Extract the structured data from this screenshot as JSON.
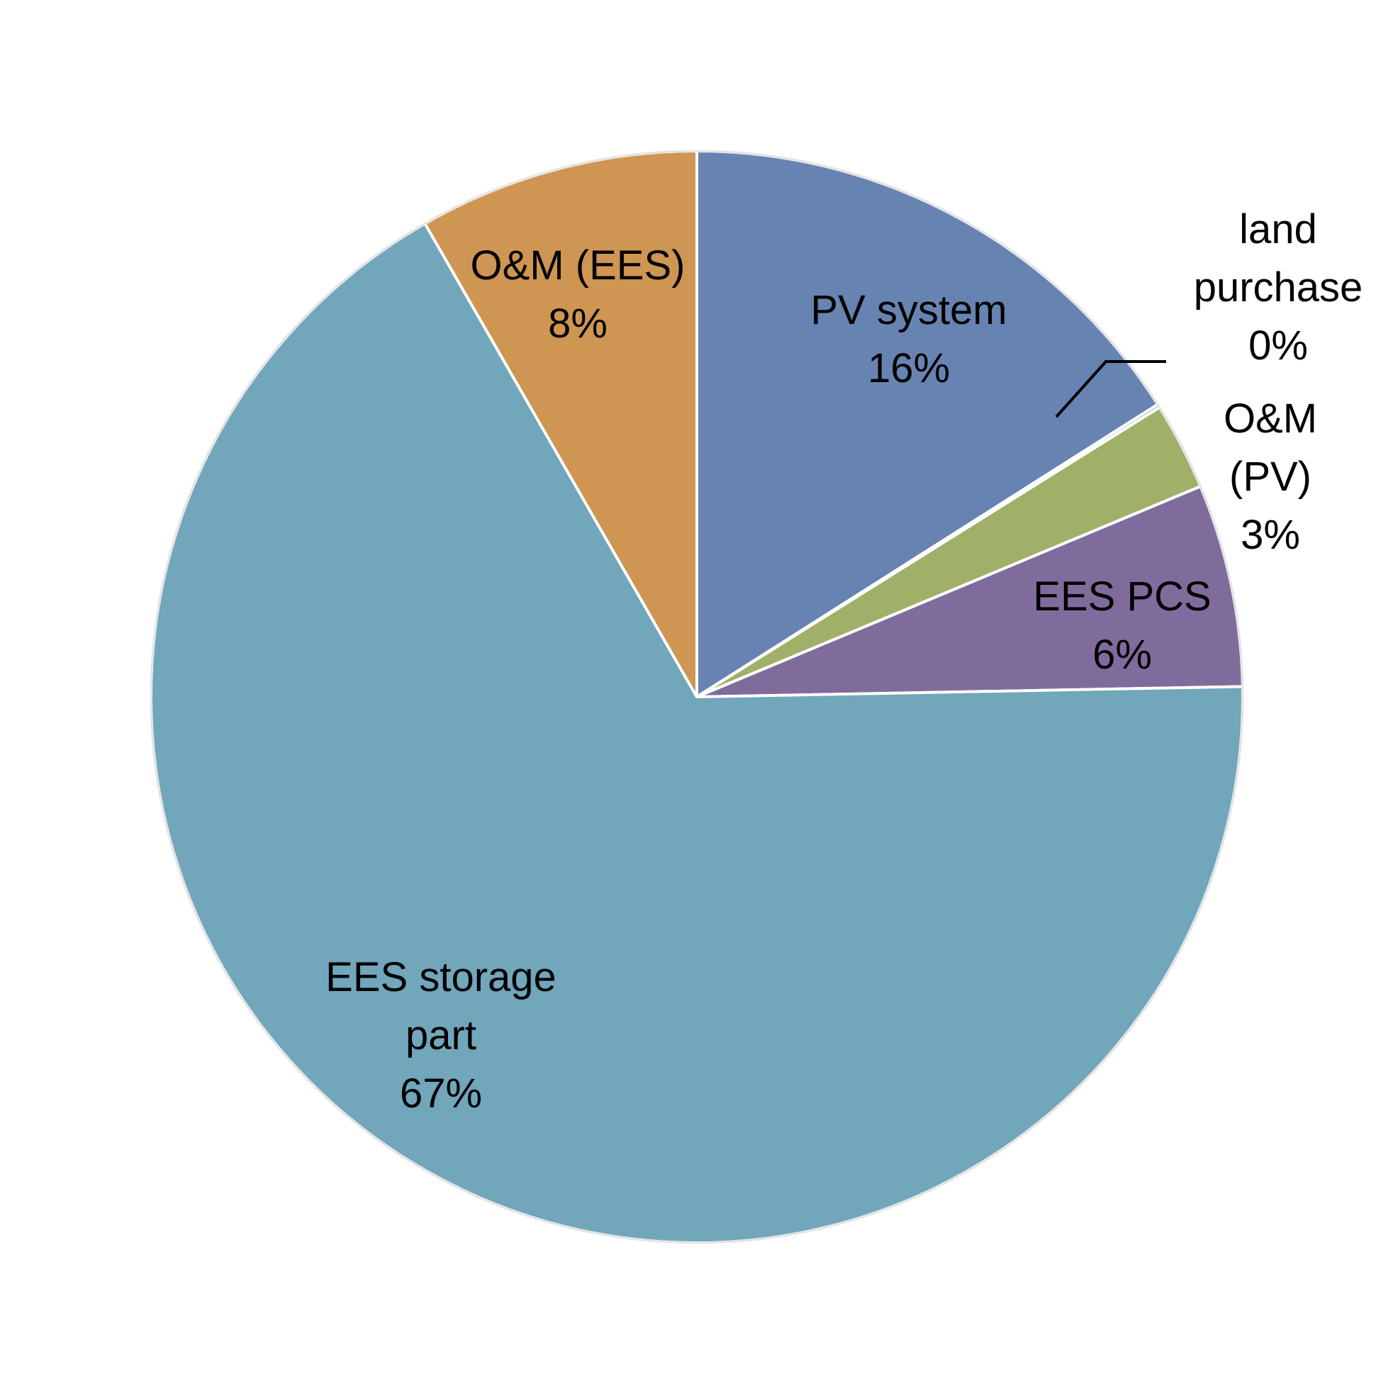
{
  "chart_data": {
    "type": "pie",
    "title": "",
    "start_angle_deg": 0,
    "direction": "clockwise",
    "slices": [
      {
        "name": "PV system",
        "value": 16,
        "label_lines": [
          "PV system",
          "16%"
        ],
        "color": "#6783B1"
      },
      {
        "name": "land purchase",
        "value": 0.1,
        "label_lines": [
          "land",
          "purchase",
          "0%"
        ],
        "color": "#6783B1"
      },
      {
        "name": "O&M (PV)",
        "value": 2.6,
        "label_lines": [
          "O&M",
          "(PV)",
          "3%"
        ],
        "color": "#A1B068"
      },
      {
        "name": "EES PCS",
        "value": 6,
        "label_lines": [
          "EES PCS",
          "6%"
        ],
        "color": "#7F6C9C"
      },
      {
        "name": "EES storage part",
        "value": 67,
        "label_lines": [
          "EES storage",
          "part",
          "67%"
        ],
        "color": "#71A6BB"
      },
      {
        "name": "O&M (EES)",
        "value": 8.3,
        "label_lines": [
          "O&M (EES)",
          "8%"
        ],
        "color": "#CE9553"
      }
    ],
    "slice_border_color": "#FFFFFF",
    "leader_line_color": "#000000"
  }
}
